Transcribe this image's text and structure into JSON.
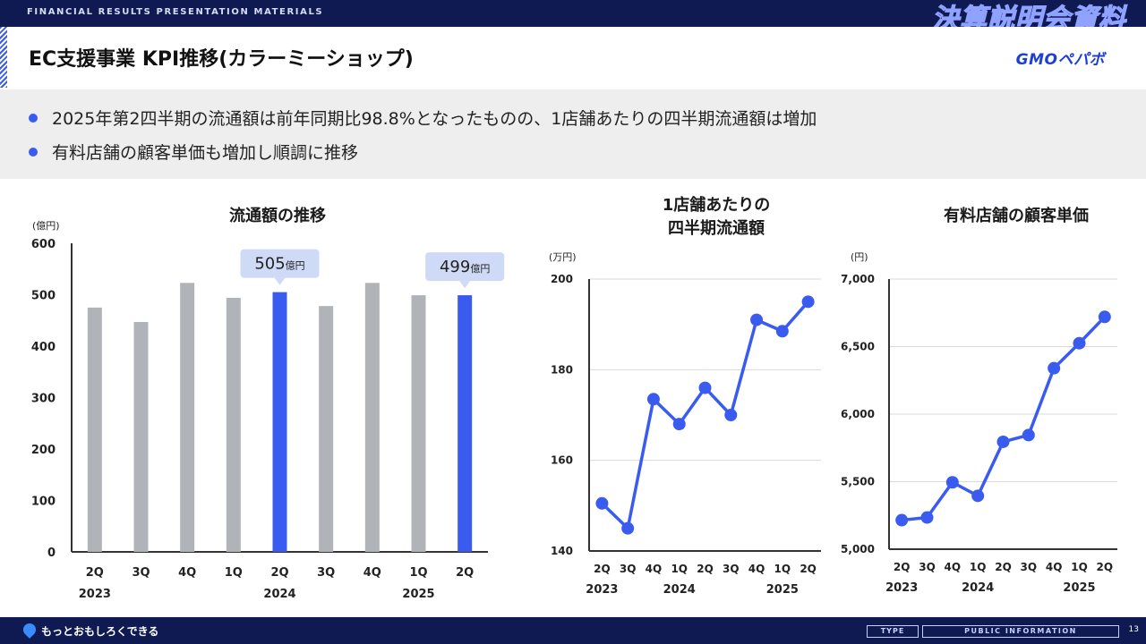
{
  "header": {
    "tag": "FINANCIAL RESULTS PRESENTATION MATERIALS",
    "kanji": "決算説明会資料"
  },
  "title": "EC支援事業 KPI推移(カラーミーショップ)",
  "logo": "GMOペパボ",
  "bullets": [
    "2025年第2四半期の流通額は前年同期比98.8%となったものの、1店舗あたりの四半期流通額は増加",
    "有料店舗の顧客単価も増加し順調に推移"
  ],
  "footer": {
    "motto": "もっとおもしろくできる",
    "type": "TYPE",
    "info": "PUBLIC INFORMATION",
    "page": "13"
  },
  "colors": {
    "accent": "#3a5bf0",
    "bar": "#b0b4b8",
    "navy": "#0f1a52",
    "callout": "#cfdaf7"
  },
  "chart_data": [
    {
      "type": "bar",
      "title": "流通額の推移",
      "ylabel": "(億円)",
      "ylim": [
        0,
        600
      ],
      "yticks": [
        0,
        100,
        200,
        300,
        400,
        500,
        600
      ],
      "categories": [
        "2Q",
        "3Q",
        "4Q",
        "1Q",
        "2Q",
        "3Q",
        "4Q",
        "1Q",
        "2Q"
      ],
      "years": [
        {
          "label": "2023",
          "index": 0
        },
        {
          "label": "2024",
          "index": 4
        },
        {
          "label": "2025",
          "index": 7
        }
      ],
      "values": [
        475,
        447,
        523,
        494,
        505,
        478,
        523,
        499,
        499
      ],
      "highlight": [
        4,
        8
      ],
      "callouts": [
        {
          "index": 4,
          "value": "505",
          "unit": "億円"
        },
        {
          "index": 8,
          "value": "499",
          "unit": "億円"
        }
      ],
      "grid": false
    },
    {
      "type": "line",
      "title": "1店舗あたりの\n四半期流通額",
      "ylabel": "(万円)",
      "ylim": [
        140,
        200
      ],
      "yticks": [
        140,
        160,
        180,
        200
      ],
      "categories": [
        "2Q",
        "3Q",
        "4Q",
        "1Q",
        "2Q",
        "3Q",
        "4Q",
        "1Q",
        "2Q"
      ],
      "years": [
        {
          "label": "2023",
          "index": 0
        },
        {
          "label": "2024",
          "index": 3
        },
        {
          "label": "2025",
          "index": 7
        }
      ],
      "values": [
        150.5,
        145,
        173.5,
        168,
        176,
        170,
        191,
        188.5,
        195
      ],
      "grid": true
    },
    {
      "type": "line",
      "title": "有料店舗の顧客単価",
      "ylabel": "(円)",
      "ylim": [
        5000,
        7000
      ],
      "yticks": [
        "5,000",
        "5,500",
        "6,000",
        "6,500",
        "7,000"
      ],
      "yticks_values": [
        5000,
        5500,
        6000,
        6500,
        7000
      ],
      "categories": [
        "2Q",
        "3Q",
        "4Q",
        "1Q",
        "2Q",
        "3Q",
        "4Q",
        "1Q",
        "2Q"
      ],
      "years": [
        {
          "label": "2023",
          "index": 0
        },
        {
          "label": "2024",
          "index": 3
        },
        {
          "label": "2025",
          "index": 7
        }
      ],
      "values": [
        5215,
        5235,
        5495,
        5395,
        5795,
        5845,
        6340,
        6525,
        6720
      ],
      "grid": true
    }
  ]
}
